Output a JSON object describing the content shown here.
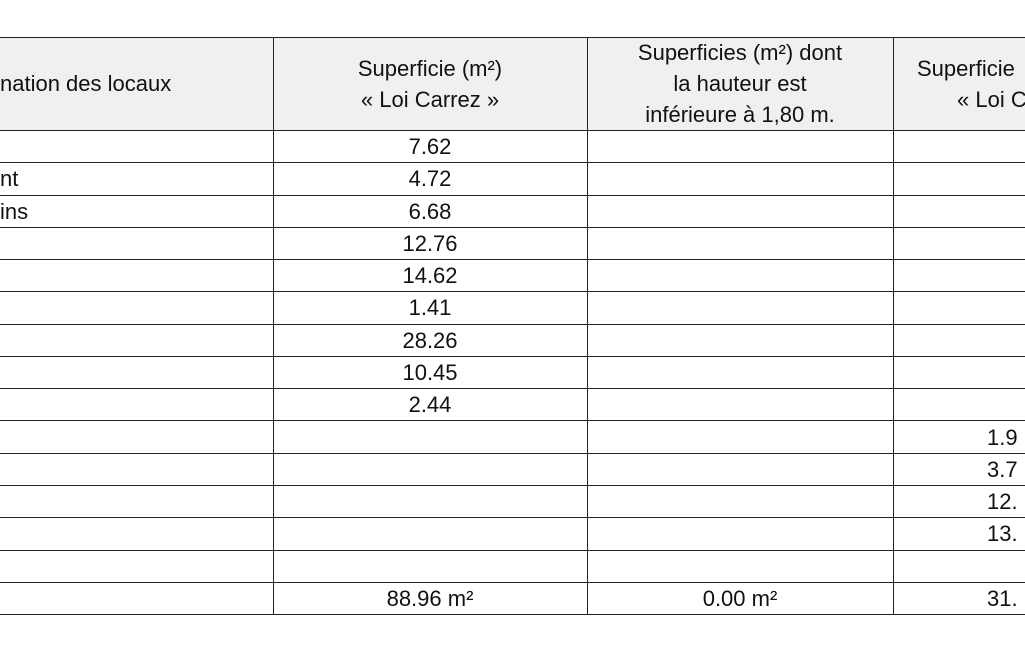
{
  "table": {
    "header": [
      "nation des locaux",
      [
        "Superficie (m²)",
        "« Loi Carrez »"
      ],
      [
        "Superficies (m²) dont",
        "la hauteur est",
        "inférieure à 1,80 m."
      ],
      [
        "Superficie",
        "« Loi C"
      ]
    ],
    "rows": [
      [
        null,
        "7.62",
        null,
        null
      ],
      [
        "nt",
        "4.72",
        null,
        null
      ],
      [
        "ins",
        "6.68",
        null,
        null
      ],
      [
        null,
        "12.76",
        null,
        null
      ],
      [
        null,
        "14.62",
        null,
        null
      ],
      [
        null,
        "1.41",
        null,
        null
      ],
      [
        null,
        "28.26",
        null,
        null
      ],
      [
        null,
        "10.45",
        null,
        null
      ],
      [
        null,
        "2.44",
        null,
        null
      ],
      [
        null,
        null,
        null,
        "1.9"
      ],
      [
        null,
        null,
        null,
        "3.7"
      ],
      [
        null,
        null,
        null,
        "12."
      ],
      [
        null,
        null,
        null,
        "13."
      ],
      [
        null,
        null,
        null,
        null
      ],
      [
        null,
        "88.96 m²",
        "0.00 m²",
        "31."
      ]
    ]
  }
}
